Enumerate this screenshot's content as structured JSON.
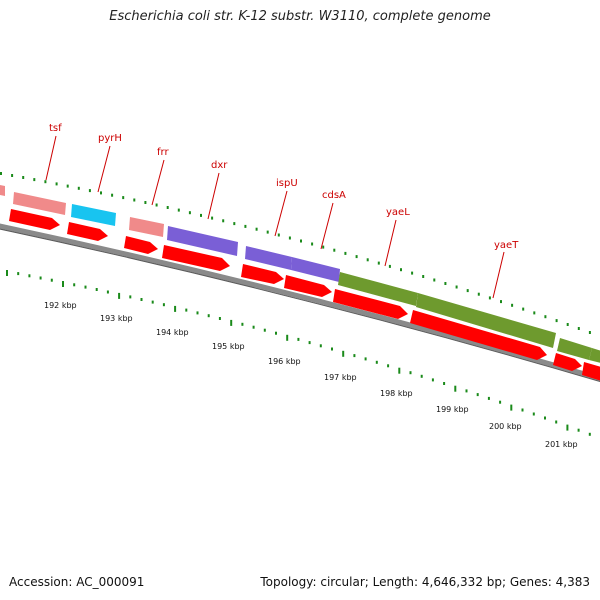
{
  "header": {
    "title": "Escherichia coli str. K-12 substr. W3110, complete genome"
  },
  "footer": {
    "accession": "Accession: AC_000091",
    "summary": "Topology: circular; Length: 4,646,332 bp; Genes: 4,383"
  },
  "genes": [
    {
      "name": "tsf",
      "color": "#f08a8a"
    },
    {
      "name": "pyrH",
      "color": "#18c4f0"
    },
    {
      "name": "frr",
      "color": "#f08a8a"
    },
    {
      "name": "dxr",
      "color": "#7a5fd6"
    },
    {
      "name": "ispU",
      "color": "#7a5fd6"
    },
    {
      "name": "cdsA",
      "color": "#7a5fd6"
    },
    {
      "name": "yaeL",
      "color": "#6e9a2e"
    },
    {
      "name": "yaeT",
      "color": "#6e9a2e"
    }
  ],
  "scale_labels": [
    "192 kbp",
    "193 kbp",
    "194 kbp",
    "195 kbp",
    "196 kbp",
    "197 kbp",
    "198 kbp",
    "199 kbp",
    "200 kbp",
    "201 kbp"
  ],
  "colors": {
    "cds": "#ff0000",
    "backbone": "#777777",
    "gc_ticks": "#1a8a1a",
    "gene_label": "#cc0000"
  }
}
